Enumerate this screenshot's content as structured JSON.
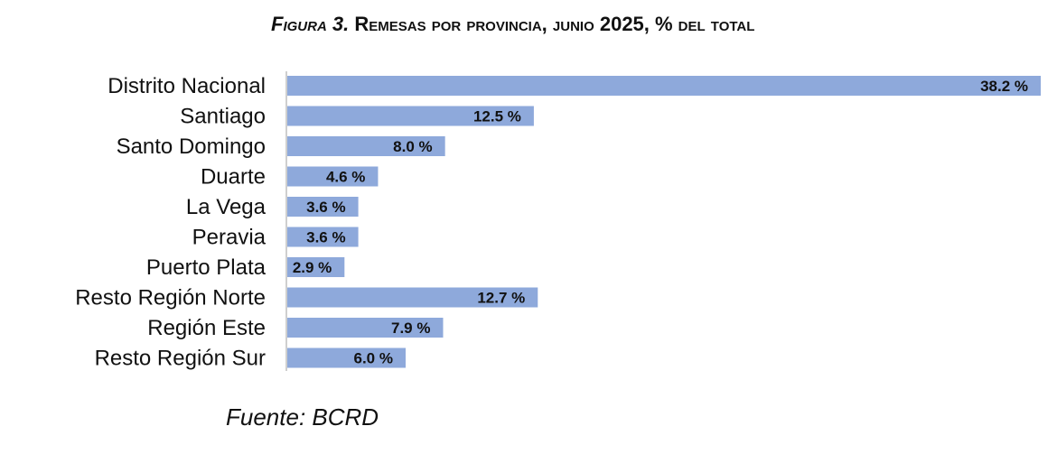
{
  "figure": {
    "label": "Figura 3.",
    "title": "Remesas por provincia, junio 2025, % del total"
  },
  "source": "Fuente: BCRD",
  "chart_data": {
    "type": "bar",
    "orientation": "horizontal",
    "title": "Remesas por provincia, junio 2025, % del total",
    "categories": [
      "Distrito Nacional",
      "Santiago",
      "Santo Domingo",
      "Duarte",
      "La Vega",
      "Peravia",
      "Puerto Plata",
      "Resto Región Norte",
      "Región Este",
      "Resto Región Sur"
    ],
    "values": [
      38.2,
      12.5,
      8.0,
      4.6,
      3.6,
      3.6,
      2.9,
      12.7,
      7.9,
      6.0
    ],
    "value_labels": [
      "38.2 %",
      "12.5 %",
      "8.0 %",
      "4.6 %",
      "3.6 %",
      "3.6 %",
      "2.9 %",
      "12.7 %",
      "7.9 %",
      "6.0 %"
    ],
    "unit": "%",
    "xlim": [
      0,
      38.2
    ],
    "grid": false,
    "colors": {
      "bar": "#8EA9DB",
      "axis": "#BFBFBF",
      "text": "#111111"
    }
  }
}
